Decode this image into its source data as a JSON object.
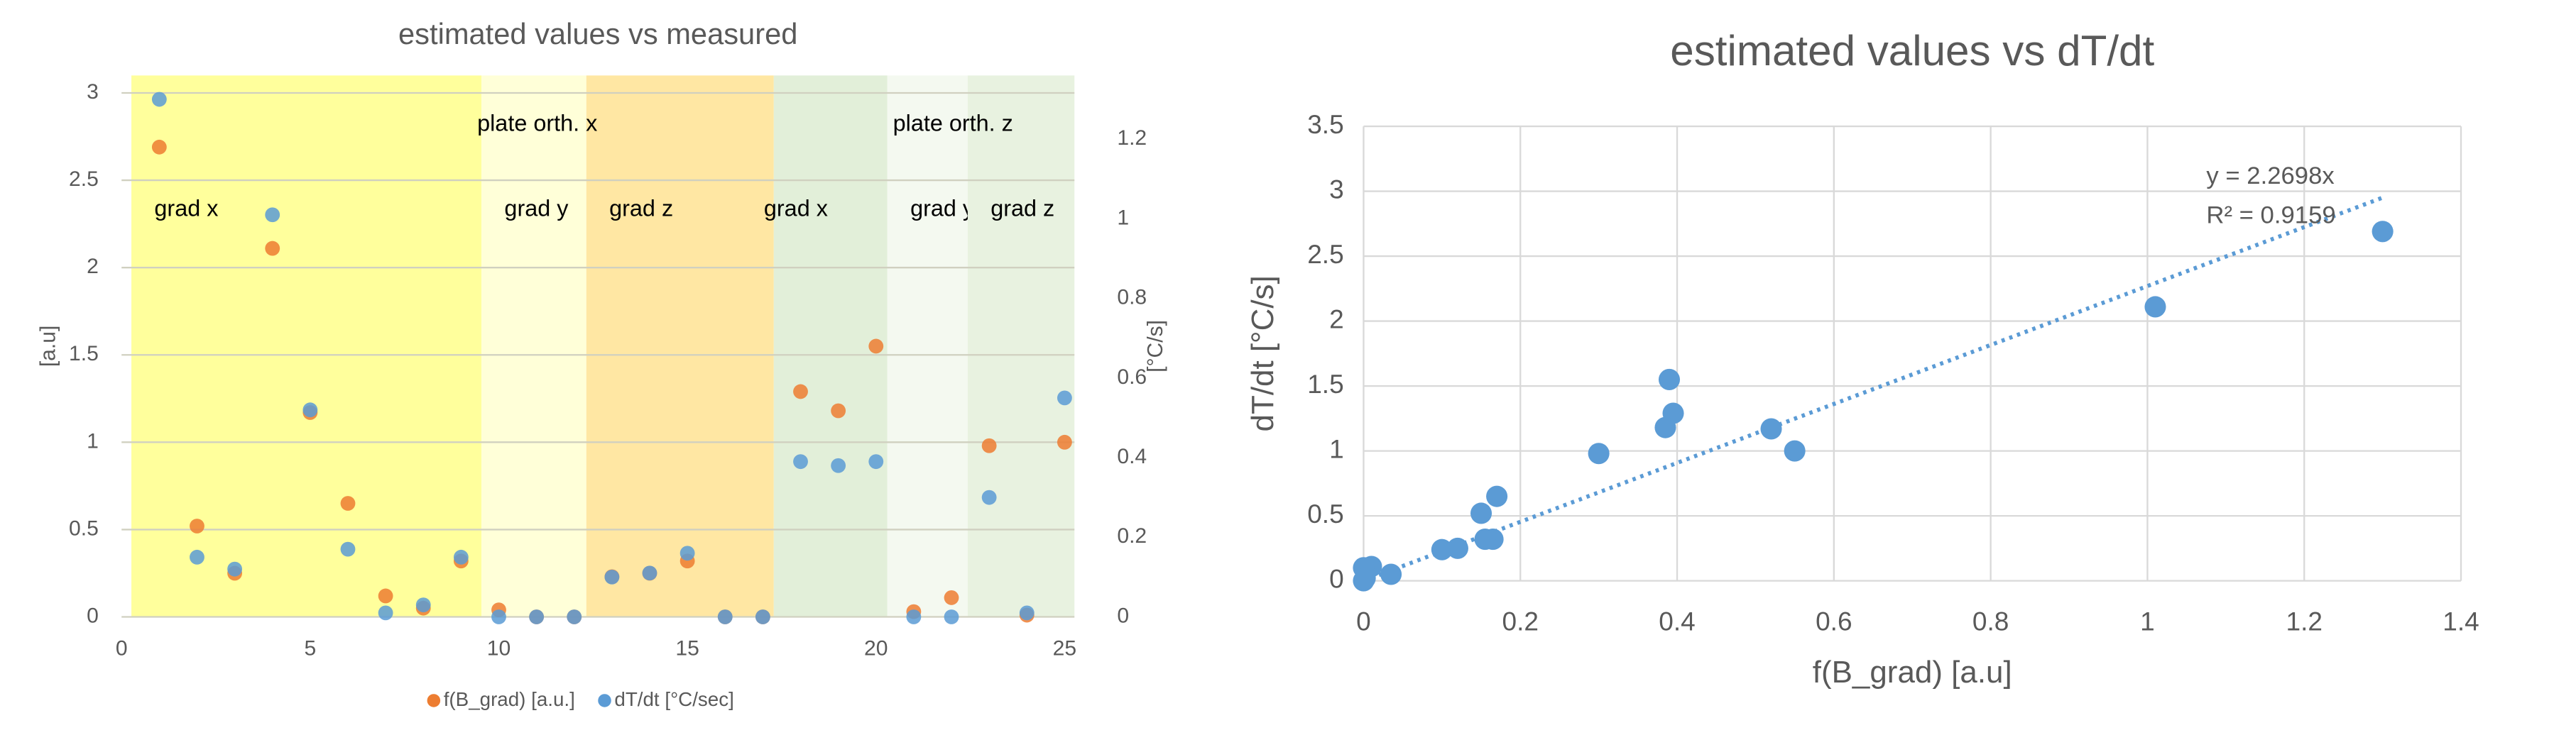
{
  "chart_data": [
    {
      "type": "scatter",
      "title": "estimated values vs measured",
      "ylabel": "[a.u]",
      "y2label": "[°C/s]",
      "xlim": [
        0,
        25.26
      ],
      "xticks": [
        0,
        5,
        10,
        15,
        20,
        25
      ],
      "ylim": [
        0,
        3.1
      ],
      "yticks": [
        0,
        0.5,
        1,
        1.5,
        2,
        2.5,
        3
      ],
      "y2lim": [
        0,
        1.36
      ],
      "y2ticks": [
        0,
        0.2,
        0.4,
        0.6,
        0.8,
        1,
        1.2
      ],
      "grid": true,
      "legend": "bottom",
      "regions": [
        {
          "x": [
            0.26,
            9.54
          ],
          "color": "#ffff9c",
          "label": "grad x"
        },
        {
          "x": [
            9.54,
            12.32
          ],
          "color": "#ffffd8",
          "label": "grad y"
        },
        {
          "x": [
            12.32,
            17.29
          ],
          "color": "#ffe7a3",
          "label": "grad z"
        },
        {
          "x": [
            17.29,
            20.3
          ],
          "color": "#e2efd9",
          "label": "grad x"
        },
        {
          "x": [
            20.3,
            22.43
          ],
          "color": "#f4f9f0",
          "label": "grad y"
        },
        {
          "x": [
            22.43,
            25.26
          ],
          "color": "#e8f2e0",
          "label": "grad z"
        }
      ],
      "annotations": [
        "plate orth. x",
        "plate orth. z"
      ],
      "x": [
        1,
        2,
        3,
        4,
        5,
        6,
        7,
        8,
        9,
        10,
        11,
        12,
        13,
        14,
        15,
        16,
        17,
        18,
        19,
        20,
        21,
        22,
        23,
        24,
        25
      ],
      "series": [
        {
          "name": "f(B_grad) [a.u.]",
          "color": "#ed7d31",
          "values": [
            2.69,
            0.52,
            0.25,
            2.11,
            1.17,
            0.65,
            0.12,
            0.05,
            0.32,
            0.04,
            0,
            0,
            0.23,
            0.25,
            0.32,
            0,
            0,
            1.29,
            1.18,
            1.55,
            0.03,
            0.11,
            0.98,
            0.01,
            1.0
          ]
        },
        {
          "name": "dT/dt [°C/sec]",
          "color": "#5b9bd5",
          "axis": "y2",
          "values": [
            1.3,
            0.15,
            0.12,
            1.01,
            0.52,
            0.17,
            0.01,
            0.03,
            0.15,
            0,
            0,
            0,
            0.1,
            0.11,
            0.16,
            0,
            0,
            0.39,
            0.38,
            0.39,
            0,
            0,
            0.3,
            0.01,
            0.55
          ]
        }
      ]
    },
    {
      "type": "scatter",
      "title": "estimated values vs dT/dt",
      "xlabel": "f(B_grad) [a.u]",
      "ylabel": "dT/dt [°C/s]",
      "xlim": [
        0,
        1.4
      ],
      "xticks": [
        0,
        0.2,
        0.4,
        0.6,
        0.8,
        1,
        1.2,
        1.4
      ],
      "ylim": [
        0,
        3.5
      ],
      "yticks": [
        0,
        0.5,
        1,
        1.5,
        2,
        2.5,
        3,
        3.5
      ],
      "grid": true,
      "x": [
        1.3,
        1.01,
        0.55,
        0.52,
        0.39,
        0.395,
        0.385,
        0.3,
        0.17,
        0.15,
        0.165,
        0.155,
        0.12,
        0.1,
        0.035,
        0.01,
        0,
        0,
        0.002
      ],
      "series": [
        {
          "name": "dT/dt",
          "color": "#5b9bd5",
          "values": [
            2.69,
            2.11,
            1.0,
            1.17,
            1.55,
            1.29,
            1.18,
            0.98,
            0.65,
            0.52,
            0.32,
            0.32,
            0.25,
            0.24,
            0.05,
            0.11,
            0.1,
            0,
            0.02
          ]
        }
      ],
      "trendline": {
        "slope": 2.2698,
        "x": [
          0,
          1.3
        ],
        "color": "#5b9bd5",
        "label": [
          "y = 2.2698x",
          "R² = 0.9159"
        ]
      }
    }
  ]
}
